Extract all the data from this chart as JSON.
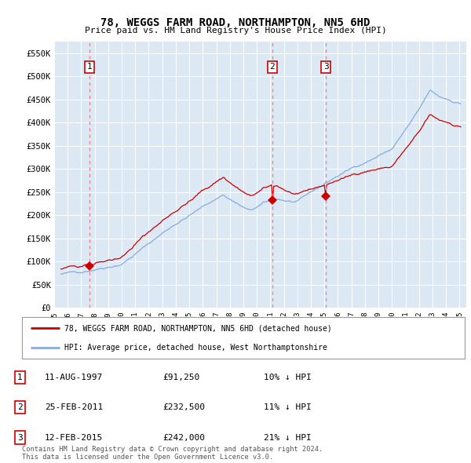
{
  "title": "78, WEGGS FARM ROAD, NORTHAMPTON, NN5 6HD",
  "subtitle": "Price paid vs. HM Land Registry's House Price Index (HPI)",
  "fig_bg_color": "#ffffff",
  "plot_bg_color": "#dce9f5",
  "ylim": [
    0,
    575000
  ],
  "yticks": [
    0,
    50000,
    100000,
    150000,
    200000,
    250000,
    300000,
    350000,
    400000,
    450000,
    500000,
    550000
  ],
  "ytick_labels": [
    "£0",
    "£50K",
    "£100K",
    "£150K",
    "£200K",
    "£250K",
    "£300K",
    "£350K",
    "£400K",
    "£450K",
    "£500K",
    "£550K"
  ],
  "xlim_start": 1995.3,
  "xlim_end": 2025.5,
  "xticks": [
    1995,
    1996,
    1997,
    1998,
    1999,
    2000,
    2001,
    2002,
    2003,
    2004,
    2005,
    2006,
    2007,
    2008,
    2009,
    2010,
    2011,
    2012,
    2013,
    2014,
    2015,
    2016,
    2017,
    2018,
    2019,
    2020,
    2021,
    2022,
    2023,
    2024,
    2025
  ],
  "sale_dates": [
    1997.614,
    2011.144,
    2015.118
  ],
  "sale_prices": [
    91250,
    232500,
    242000
  ],
  "sale_labels": [
    "1",
    "2",
    "3"
  ],
  "legend_line1": "78, WEGGS FARM ROAD, NORTHAMPTON, NN5 6HD (detached house)",
  "legend_line2": "HPI: Average price, detached house, West Northamptonshire",
  "table_entries": [
    {
      "label": "1",
      "date": "11-AUG-1997",
      "price": "£91,250",
      "pct": "10% ↓ HPI"
    },
    {
      "label": "2",
      "date": "25-FEB-2011",
      "price": "£232,500",
      "pct": "11% ↓ HPI"
    },
    {
      "label": "3",
      "date": "12-FEB-2015",
      "price": "£242,000",
      "pct": "21% ↓ HPI"
    }
  ],
  "footnote": "Contains HM Land Registry data © Crown copyright and database right 2024.\nThis data is licensed under the Open Government Licence v3.0.",
  "red_line_color": "#cc0000",
  "blue_line_color": "#88aadd",
  "dashed_line_color": "#ee8888"
}
